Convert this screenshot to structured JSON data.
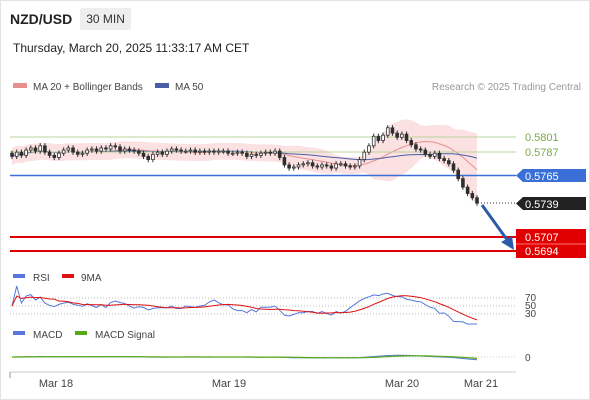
{
  "header": {
    "pair": "NZD/USD",
    "timeframe": "30 MIN",
    "datetime": "Thursday, March 20, 2025 11:33:17 AM CET"
  },
  "legend": {
    "ma20_bb": "MA 20 + Bollinger Bands",
    "ma50": "MA 50",
    "copyright": "Research © 2025 Trading Central"
  },
  "colors": {
    "bollinger_fill": "#fbe1e1",
    "ma20": "#e88f8f",
    "ma50": "#4a5fa8",
    "candle": "#2e2e2e",
    "support_line": "#e10000",
    "pivot_line": "#3a6fd8",
    "resistance_line": "#b9d49b",
    "arrow": "#2a5aa8",
    "rsi": "#5577dd",
    "rsi_ma": "#dd1111",
    "macd": "#5577dd",
    "macd_signal": "#55aa11"
  },
  "levels": [
    {
      "value": "0.5801",
      "kind": "resistance"
    },
    {
      "value": "0.5787",
      "kind": "resistance"
    },
    {
      "value": "0.5765",
      "kind": "pivot"
    },
    {
      "value": "0.5739",
      "kind": "last"
    },
    {
      "value": "0.5707",
      "kind": "support"
    },
    {
      "value": "0.5694",
      "kind": "support"
    }
  ],
  "rsi_panel": {
    "label": "RSI",
    "ma_label": "9MA",
    "ticks": [
      "70",
      "50",
      "30"
    ]
  },
  "macd_panel": {
    "label": "MACD",
    "signal_label": "MACD Signal",
    "zero_tick": "0"
  },
  "x_axis": {
    "ticks": [
      "Mar 18",
      "Mar 19",
      "Mar 20",
      "Mar 21"
    ]
  },
  "chart_data": {
    "type": "candlestick",
    "y_range": [
      0.568,
      0.583
    ],
    "close": [
      0.5783,
      0.5787,
      0.5784,
      0.5789,
      0.5791,
      0.5788,
      0.5793,
      0.5787,
      0.5784,
      0.5782,
      0.5786,
      0.5789,
      0.5791,
      0.5787,
      0.5785,
      0.5786,
      0.5789,
      0.579,
      0.5788,
      0.5791,
      0.579,
      0.5793,
      0.5792,
      0.5788,
      0.579,
      0.5789,
      0.5788,
      0.5786,
      0.5783,
      0.578,
      0.5785,
      0.5787,
      0.5785,
      0.5788,
      0.579,
      0.5789,
      0.5788,
      0.5788,
      0.5789,
      0.5787,
      0.5788,
      0.5787,
      0.5788,
      0.5787,
      0.5788,
      0.5788,
      0.5786,
      0.5786,
      0.5787,
      0.5786,
      0.5783,
      0.5785,
      0.5784,
      0.5786,
      0.5787,
      0.5786,
      0.5788,
      0.5782,
      0.5775,
      0.5772,
      0.5773,
      0.5775,
      0.5776,
      0.5777,
      0.5774,
      0.5773,
      0.5775,
      0.5774,
      0.5772,
      0.5776,
      0.5776,
      0.5774,
      0.5773,
      0.5774,
      0.578,
      0.5787,
      0.5793,
      0.5802,
      0.5798,
      0.5803,
      0.581,
      0.5805,
      0.5801,
      0.5804,
      0.5798,
      0.5794,
      0.579,
      0.5789,
      0.5785,
      0.5783,
      0.5786,
      0.5781,
      0.5779,
      0.5776,
      0.577,
      0.5762,
      0.5754,
      0.5748,
      0.5744,
      0.5739
    ]
  }
}
